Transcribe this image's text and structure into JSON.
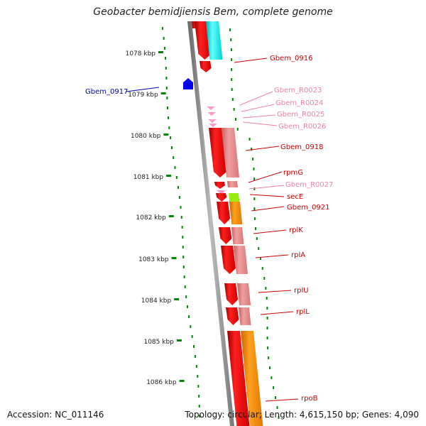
{
  "title": "Geobacter bemidjiensis Bem, complete genome",
  "footer": {
    "accession": "Accession: NC_011146",
    "summary": "Topology: circular; Length: 4,615,150 bp; Genes: 4,090"
  },
  "kbp_ticks": [
    "1078 kbp",
    "1079 kbp",
    "1080 kbp",
    "1081 kbp",
    "1082 kbp",
    "1083 kbp",
    "1084 kbp",
    "1085 kbp",
    "1086 kbp"
  ],
  "gene_labels": [
    {
      "text": "Gbem_0916",
      "color": "#cc0000"
    },
    {
      "text": "Gbem_0917",
      "color": "#0000aa"
    },
    {
      "text": "Gbem_R0023",
      "color": "#f07fae"
    },
    {
      "text": "Gbem_R0024",
      "color": "#f07fae"
    },
    {
      "text": "Gbem_R0025",
      "color": "#f07fae"
    },
    {
      "text": "Gbem_R0026",
      "color": "#f07fae"
    },
    {
      "text": "Gbem_0918",
      "color": "#cc0000"
    },
    {
      "text": "rpmG",
      "color": "#cc0000"
    },
    {
      "text": "Gbem_R0027",
      "color": "#f07fae"
    },
    {
      "text": "secE",
      "color": "#cc0000"
    },
    {
      "text": "Gbem_0921",
      "color": "#cc0000"
    },
    {
      "text": "rplK",
      "color": "#cc0000"
    },
    {
      "text": "rplA",
      "color": "#cc0000"
    },
    {
      "text": "rplU",
      "color": "#cc0000"
    },
    {
      "text": "rplL",
      "color": "#cc0000"
    },
    {
      "text": "rpoB",
      "color": "#cc0000"
    }
  ],
  "colors": {
    "cds": "#ee0000",
    "cog_pink": "#ee8888",
    "cog_orange": "#ff8c00",
    "cog_cyan": "#00e5e5",
    "cog_green": "#99ee11",
    "rna": "#ff99cc",
    "reverse_gene": "#0000ee",
    "gc_track": "#008800",
    "backbone": "#888888"
  }
}
